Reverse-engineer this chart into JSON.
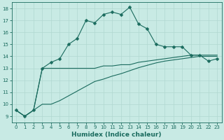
{
  "xlabel": "Humidex (Indice chaleur)",
  "bg_color": "#c8eae4",
  "line_color": "#1a6b5e",
  "grid_color": "#b0d8d0",
  "x_values": [
    0,
    1,
    2,
    3,
    4,
    5,
    6,
    7,
    8,
    9,
    10,
    11,
    12,
    13,
    14,
    15,
    16,
    17,
    18,
    19,
    20,
    21,
    22,
    23
  ],
  "line1": [
    9.5,
    9.0,
    9.5,
    13.0,
    13.5,
    13.8,
    15.0,
    15.5,
    17.0,
    16.8,
    17.5,
    17.7,
    17.5,
    18.1,
    16.7,
    16.3,
    15.0,
    14.8,
    14.8,
    14.8,
    14.1,
    14.1,
    13.6,
    13.8
  ],
  "line2": [
    9.5,
    9.0,
    9.5,
    13.0,
    13.0,
    13.0,
    13.0,
    13.0,
    13.0,
    13.0,
    13.2,
    13.2,
    13.3,
    13.3,
    13.5,
    13.6,
    13.7,
    13.8,
    13.9,
    14.0,
    14.1,
    14.1,
    14.1,
    14.1
  ],
  "line3": [
    9.5,
    9.0,
    9.5,
    10.0,
    10.0,
    10.3,
    10.7,
    11.1,
    11.5,
    11.9,
    12.1,
    12.35,
    12.55,
    12.8,
    13.05,
    13.25,
    13.45,
    13.6,
    13.7,
    13.8,
    13.9,
    14.0,
    14.0,
    14.0
  ],
  "ylim": [
    8.5,
    18.5
  ],
  "xlim": [
    -0.5,
    23.5
  ],
  "yticks": [
    9,
    10,
    11,
    12,
    13,
    14,
    15,
    16,
    17,
    18
  ],
  "xticks": [
    0,
    1,
    2,
    3,
    4,
    5,
    6,
    7,
    8,
    9,
    10,
    11,
    12,
    13,
    14,
    15,
    16,
    17,
    18,
    19,
    20,
    21,
    22,
    23
  ],
  "marker": "D",
  "markersize": 2.5,
  "linewidth": 0.8,
  "tick_fontsize": 5.0,
  "xlabel_fontsize": 6.5
}
